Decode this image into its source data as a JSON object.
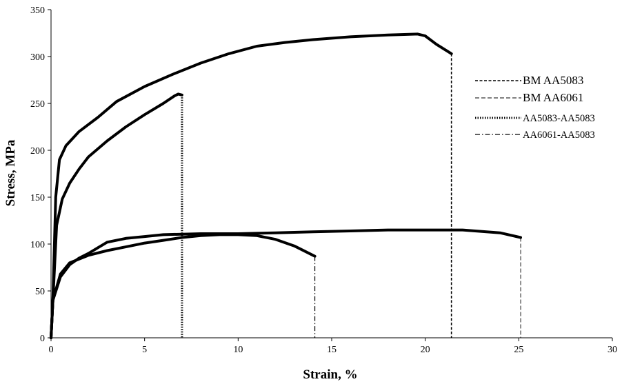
{
  "chart_data": {
    "type": "line",
    "xlabel": "Strain, %",
    "ylabel": "Stress, MPa",
    "xlim": [
      0,
      30
    ],
    "ylim": [
      0,
      350
    ],
    "xticks": [
      0,
      5,
      10,
      15,
      20,
      25,
      30
    ],
    "yticks": [
      0,
      50,
      100,
      150,
      200,
      250,
      300,
      350
    ],
    "grid": false,
    "legend_position": "right",
    "series": [
      {
        "name": "BM AA5083",
        "line_style": "dashed",
        "fracture_strain": 21.4,
        "points": [
          [
            0,
            0
          ],
          [
            0.1,
            40
          ],
          [
            0.25,
            150
          ],
          [
            0.45,
            190
          ],
          [
            0.8,
            205
          ],
          [
            1.5,
            220
          ],
          [
            2.5,
            235
          ],
          [
            3.5,
            252
          ],
          [
            5,
            268
          ],
          [
            6.5,
            281
          ],
          [
            8,
            293
          ],
          [
            9.5,
            303
          ],
          [
            11,
            311
          ],
          [
            12.5,
            315
          ],
          [
            14,
            318
          ],
          [
            16,
            321
          ],
          [
            18,
            323
          ],
          [
            19.6,
            324
          ],
          [
            20,
            322
          ],
          [
            20.6,
            313
          ],
          [
            21.4,
            303
          ]
        ]
      },
      {
        "name": "BM AA6061",
        "line_style": "dashed-thin",
        "fracture_strain": 25.1,
        "points": [
          [
            0,
            0
          ],
          [
            0.1,
            40
          ],
          [
            0.5,
            65
          ],
          [
            1,
            78
          ],
          [
            1.5,
            85
          ],
          [
            2,
            90
          ],
          [
            2.5,
            96
          ],
          [
            3,
            102
          ],
          [
            4,
            106
          ],
          [
            5,
            108
          ],
          [
            6,
            110
          ],
          [
            8,
            111
          ],
          [
            10,
            111
          ],
          [
            12,
            112
          ],
          [
            14,
            113
          ],
          [
            16,
            114
          ],
          [
            18,
            115
          ],
          [
            20,
            115
          ],
          [
            22,
            115
          ],
          [
            24,
            112
          ],
          [
            25.1,
            107
          ]
        ]
      },
      {
        "name": "AA5083-AA5083",
        "line_style": "dotted",
        "fracture_strain": 7.0,
        "points": [
          [
            0,
            0
          ],
          [
            0.1,
            40
          ],
          [
            0.3,
            120
          ],
          [
            0.6,
            148
          ],
          [
            1,
            165
          ],
          [
            1.5,
            180
          ],
          [
            2,
            193
          ],
          [
            3,
            210
          ],
          [
            4,
            225
          ],
          [
            5,
            238
          ],
          [
            6,
            250
          ],
          [
            6.6,
            258
          ],
          [
            6.8,
            260
          ],
          [
            7.0,
            259
          ]
        ]
      },
      {
        "name": "AA6061-AA5083",
        "line_style": "dash-dot",
        "fracture_strain": 14.1,
        "points": [
          [
            0,
            0
          ],
          [
            0.1,
            40
          ],
          [
            0.5,
            68
          ],
          [
            1,
            80
          ],
          [
            2,
            88
          ],
          [
            3,
            93
          ],
          [
            4,
            97
          ],
          [
            5,
            101
          ],
          [
            6,
            104
          ],
          [
            7,
            107
          ],
          [
            8,
            109
          ],
          [
            9,
            110
          ],
          [
            10,
            110
          ],
          [
            11,
            109
          ],
          [
            12,
            105
          ],
          [
            13,
            98
          ],
          [
            14.1,
            87
          ]
        ]
      }
    ]
  }
}
